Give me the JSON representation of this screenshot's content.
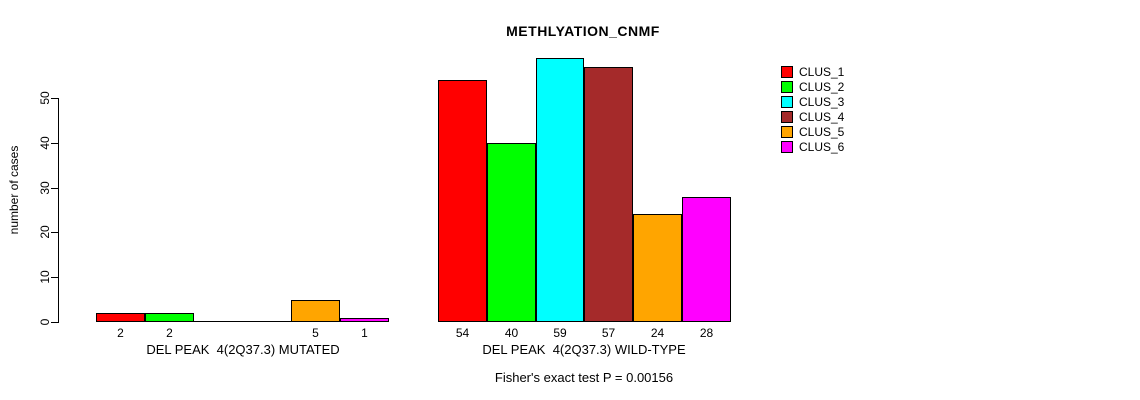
{
  "title": "METHLYATION_CNMF",
  "footer": "Fisher's exact test P = 0.00156",
  "chart_data": {
    "type": "bar",
    "title": "METHLYATION_CNMF",
    "xlabel": "",
    "ylabel": "number of cases",
    "yticks": [
      0,
      10,
      20,
      30,
      40,
      50
    ],
    "ylim": [
      0,
      59
    ],
    "grid": false,
    "legend_position": "right",
    "series": [
      "CLUS_1",
      "CLUS_2",
      "CLUS_3",
      "CLUS_4",
      "CLUS_5",
      "CLUS_6"
    ],
    "colors": [
      "#FF0000",
      "#00FF00",
      "#00FFFF",
      "#A52A2A",
      "#FFA500",
      "#FF00FF"
    ],
    "groups": [
      {
        "label": "DEL PEAK  4(2Q37.3) MUTATED",
        "values": [
          2,
          2,
          0,
          0,
          5,
          1
        ]
      },
      {
        "label": "DEL PEAK  4(2Q37.3) WILD-TYPE",
        "values": [
          54,
          40,
          59,
          57,
          24,
          28
        ]
      }
    ],
    "bar_value_labels_shown_for_zero": false,
    "annotation": "Fisher's exact test P = 0.00156"
  }
}
